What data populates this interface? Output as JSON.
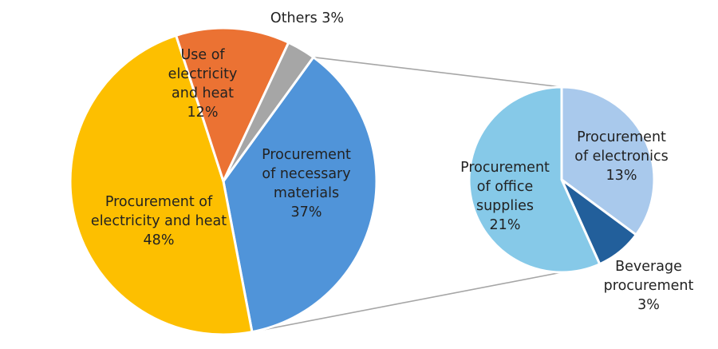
{
  "chart_data": {
    "type": "pie",
    "main_pie": {
      "slices": [
        {
          "lines": [
            "Procurement",
            "of necessary",
            "materials",
            "37%"
          ],
          "value": 37,
          "color": "#5094d9"
        },
        {
          "lines": [
            "Procurement of",
            "electricity and heat",
            "48%"
          ],
          "value": 48,
          "color": "#fdbf00"
        },
        {
          "lines": [
            "Use of",
            "electricity",
            "and heat",
            "12%"
          ],
          "value": 12,
          "color": "#eb7233"
        },
        {
          "lines": [
            "Others 3%"
          ],
          "value": 3,
          "color": "#a6a6a6"
        }
      ]
    },
    "breakdown_pie": {
      "of_slice": "Procurement of necessary materials",
      "slices": [
        {
          "lines": [
            "Procurement",
            "of electronics",
            "13%"
          ],
          "value": 13,
          "color": "#a9c9ec"
        },
        {
          "lines": [
            "Beverage",
            "procurement",
            "3%"
          ],
          "value": 3,
          "color": "#225f9b"
        },
        {
          "lines": [
            "Procurement",
            "of office",
            "supplies",
            "21%"
          ],
          "value": 21,
          "color": "#86c9e8"
        }
      ]
    }
  }
}
